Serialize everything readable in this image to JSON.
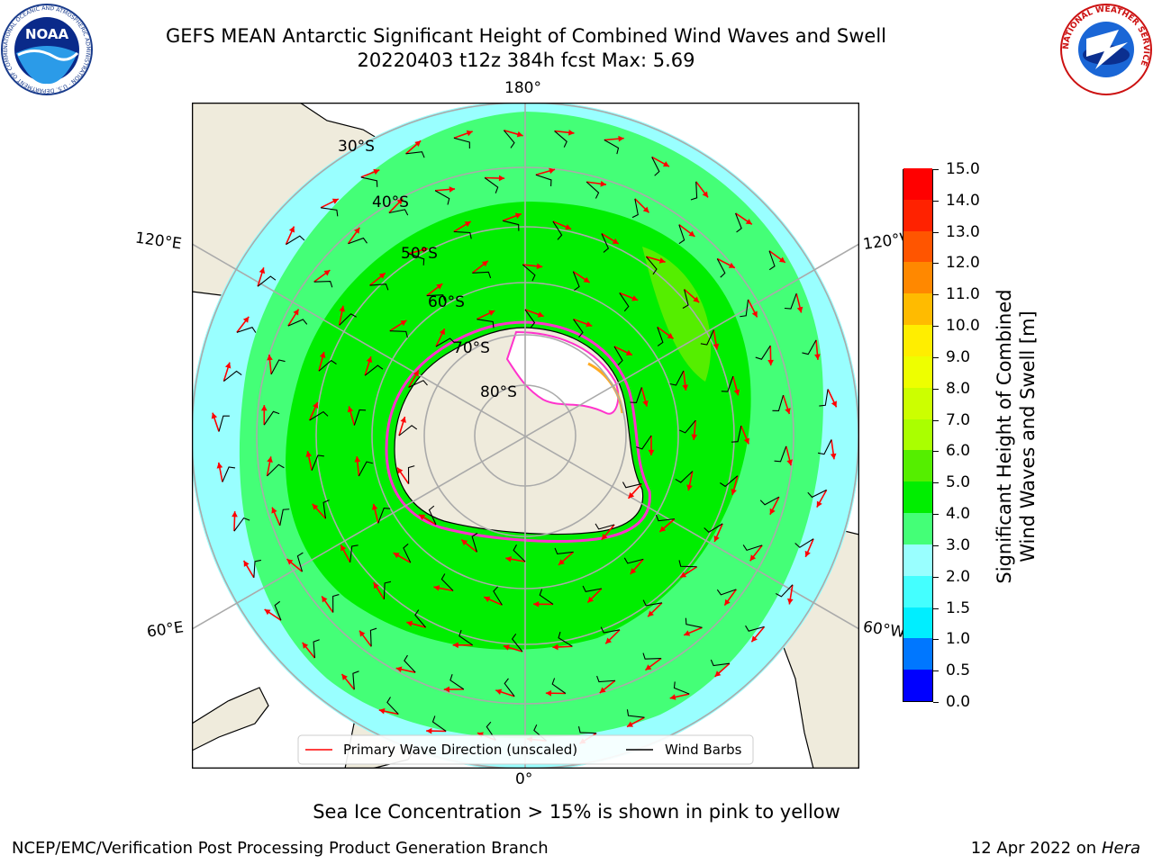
{
  "title": {
    "line1": "GEFS MEAN Antarctic Significant Height of Combined Wind Waves and Swell",
    "line2": "20220403 t12z 384h fcst   Max: 5.69"
  },
  "logos": {
    "left": {
      "text": "NOAA",
      "ring_text": "NATIONAL OCEANIC AND ATMOSPHERIC ADMINISTRATION · U.S. DEPARTMENT OF COMMERCE",
      "icon": "noaa-logo"
    },
    "right": {
      "ring_text": "NATIONAL WEATHER SERVICE",
      "icon": "nws-logo"
    }
  },
  "map": {
    "projection": "south-polar-stereographic",
    "longitude_labels": {
      "top": "180°",
      "bottom": "0°",
      "upper_left": "120°E",
      "upper_right": "120°W",
      "lower_left": "60°E",
      "lower_right": "60°W"
    },
    "latitude_labels": [
      "30°S",
      "40°S",
      "50°S",
      "60°S",
      "70°S",
      "80°S"
    ],
    "legend": {
      "wave": "Primary Wave Direction (unscaled)",
      "barb": "Wind Barbs",
      "wave_color": "#ff0000",
      "barb_color": "#000000"
    },
    "colors": {
      "land": "#efebdc",
      "ice_white": "#ffffff",
      "ice_edge": "#ff33cc",
      "ice_orange": "#ffaa22"
    }
  },
  "colorbar": {
    "label_line1": "Significant Height of Combined",
    "label_line2": "Wind Waves and Swell [m]",
    "ticks": [
      "0.0",
      "0.5",
      "1.0",
      "1.5",
      "2.0",
      "3.0",
      "4.0",
      "5.0",
      "6.0",
      "7.0",
      "8.0",
      "9.0",
      "10.0",
      "11.0",
      "12.0",
      "13.0",
      "14.0",
      "15.0"
    ],
    "colors": [
      "#0000ff",
      "#0077ff",
      "#00eeff",
      "#44ffff",
      "#99ffff",
      "#44ff77",
      "#00ee00",
      "#55ee00",
      "#aaff00",
      "#ccff00",
      "#eeff00",
      "#ffee00",
      "#ffbb00",
      "#ff8800",
      "#ff5500",
      "#ff2200",
      "#ff0000"
    ]
  },
  "footnote": "Sea Ice Concentration > 15% is shown in pink to yellow",
  "credit": {
    "left": "NCEP/EMC/Verification Post Processing Product Generation Branch",
    "date": "12 Apr 2022 on ",
    "host": "Hera"
  }
}
